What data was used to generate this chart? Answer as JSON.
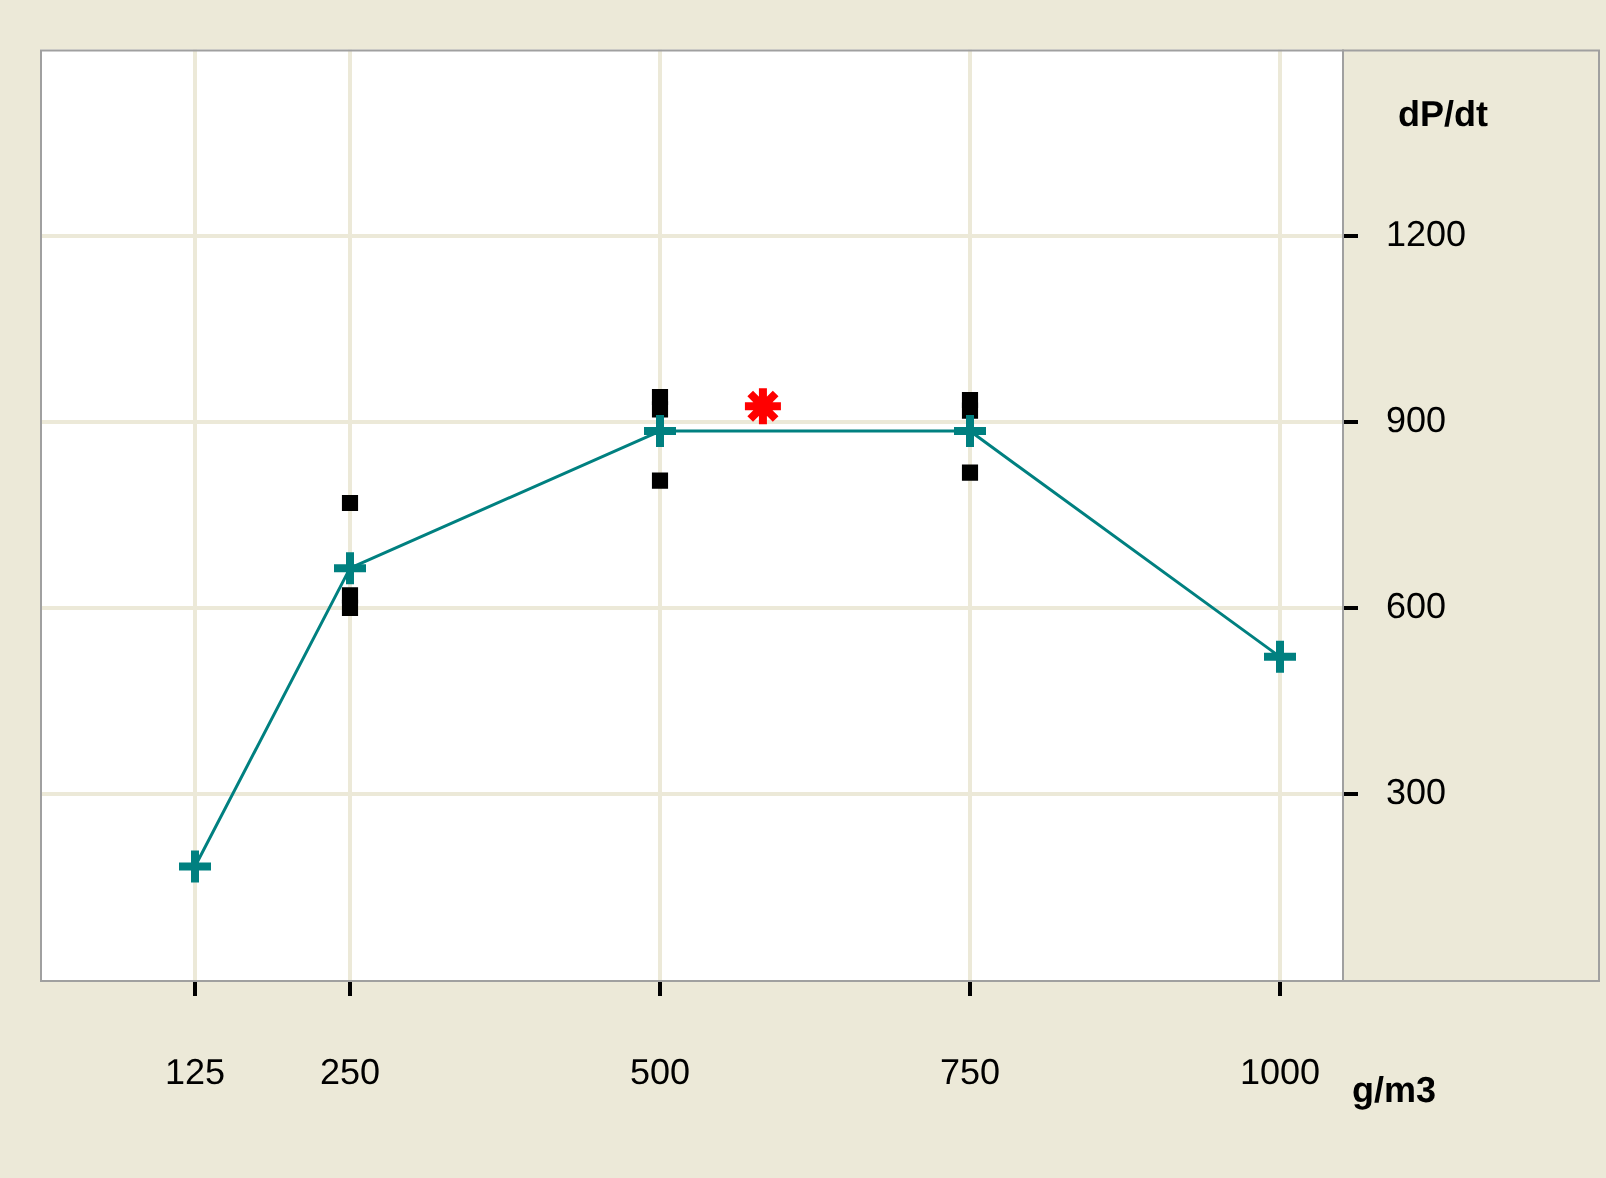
{
  "chart_data": {
    "type": "line",
    "xlabel": "g/m3",
    "ylabel": "dP/dt",
    "xlim": [
      0,
      1050
    ],
    "ylim": [
      0,
      1500
    ],
    "xticks": [
      125,
      250,
      500,
      750,
      1000
    ],
    "yticks": [
      300,
      600,
      900,
      1200
    ],
    "grid": true,
    "legend": false,
    "series": [
      {
        "type": "line",
        "color": "#008080",
        "marker": "cross",
        "x": [
          125,
          250,
          500,
          750,
          1000
        ],
        "values": [
          183,
          664,
          885,
          885,
          521
        ]
      },
      {
        "type": "scatter",
        "color": "#000000",
        "marker": "square",
        "x": [
          250,
          250,
          250,
          500,
          500,
          500,
          750,
          750,
          750
        ],
        "values": [
          769,
          620,
          600,
          940,
          920,
          805,
          935,
          918,
          818
        ]
      },
      {
        "type": "scatter",
        "color": "#ff0000",
        "x": [
          583
        ],
        "values": [
          925
        ]
      }
    ]
  }
}
